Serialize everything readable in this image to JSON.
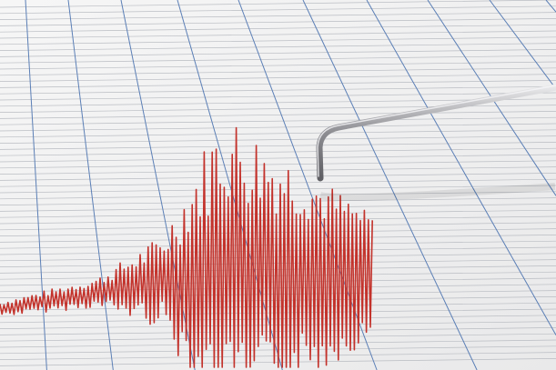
{
  "colors": {
    "paper": "#f3f3f3",
    "grid_minor": "#b9bcc2",
    "grid_major": "#5b7fb6",
    "trace": "#c3322b",
    "stylus": "#9a9a9e"
  },
  "icons": [
    "seismograph-trace",
    "recording-stylus"
  ]
}
